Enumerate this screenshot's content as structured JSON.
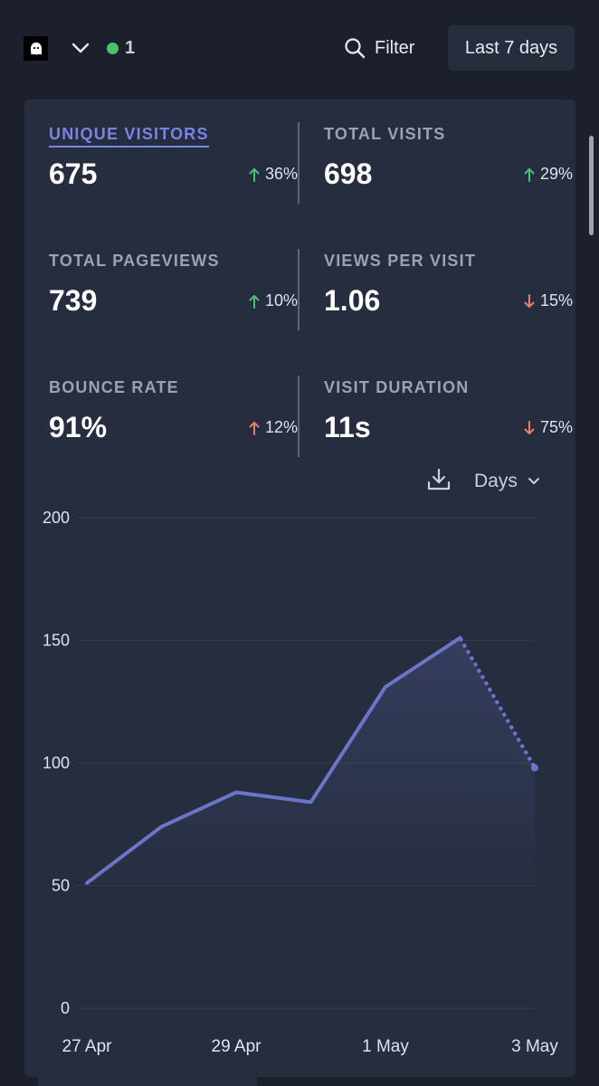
{
  "header": {
    "site_logo_icon": "ghost-logo-icon",
    "dropdown_icon": "chevron-down-icon",
    "live_dot_color": "#4ac26b",
    "live_visitors": "1",
    "filter_icon": "search-icon",
    "filter_label": "Filter",
    "period_label": "Last 7 days"
  },
  "stats": [
    {
      "label": "UNIQUE VISITORS",
      "value": "675",
      "change": "36%",
      "direction": "up",
      "active": true
    },
    {
      "label": "TOTAL VISITS",
      "value": "698",
      "change": "29%",
      "direction": "up",
      "active": false
    },
    {
      "label": "TOTAL PAGEVIEWS",
      "value": "739",
      "change": "10%",
      "direction": "up",
      "active": false
    },
    {
      "label": "VIEWS PER VISIT",
      "value": "1.06",
      "change": "15%",
      "direction": "down",
      "active": false
    },
    {
      "label": "BOUNCE RATE",
      "value": "91%",
      "change": "12%",
      "direction": "up",
      "active": false
    },
    {
      "label": "VISIT DURATION",
      "value": "11s",
      "change": "75%",
      "direction": "down",
      "active": false
    }
  ],
  "colors": {
    "accent": "#7b83e6",
    "up_good": "#4ac26b",
    "down_bad": "#e5806a",
    "up_bad": "#e5806a",
    "line": "#6c76c9"
  },
  "chart_controls": {
    "download_icon": "download-icon",
    "interval_label": "Days",
    "interval_icon": "chevron-down-icon"
  },
  "chart_data": {
    "type": "line",
    "x": [
      "27 Apr",
      "28 Apr",
      "29 Apr",
      "30 Apr",
      "1 May",
      "2 May",
      "3 May"
    ],
    "xtick_labels": [
      "27 Apr",
      "29 Apr",
      "1 May",
      "3 May"
    ],
    "series": [
      {
        "values": [
          51,
          74,
          88,
          84,
          131,
          151,
          98
        ]
      }
    ],
    "dashed_last_segment": true,
    "ylim": [
      0,
      200
    ],
    "yticks": [
      "0",
      "50",
      "100",
      "150",
      "200"
    ],
    "grid": true
  }
}
